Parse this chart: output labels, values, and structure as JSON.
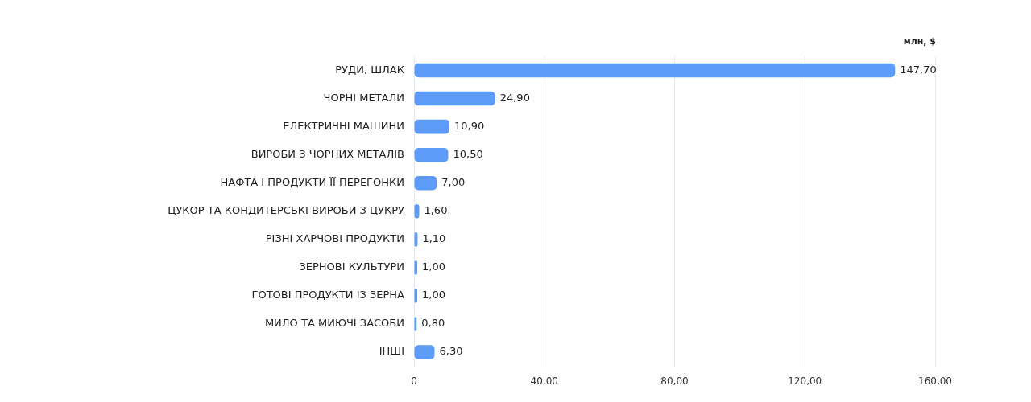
{
  "chart_data": {
    "type": "bar",
    "orientation": "horizontal",
    "annotations": [
      "млн, $"
    ],
    "categories": [
      "РУДИ, ШЛАК",
      "ЧОРНІ МЕТАЛИ",
      "ЕЛЕКТРИЧНІ МАШИНИ",
      "ВИРОБИ З ЧОРНИХ МЕТАЛІВ",
      "НАФТА І ПРОДУКТИ ЇЇ ПЕРЕГОНКИ",
      "ЦУКОР ТА КОНДИТЕРСЬКІ ВИРОБИ З ЦУКРУ",
      "РІЗНІ ХАРЧОВІ ПРОДУКТИ",
      "ЗЕРНОВІ КУЛЬТУРИ",
      "ГОТОВІ ПРОДУКТИ ІЗ ЗЕРНА",
      "МИЛО ТА МИЮЧІ ЗАСОБИ",
      "ІНШІ"
    ],
    "values": [
      147.7,
      24.9,
      10.9,
      10.5,
      7.0,
      1.6,
      1.1,
      1.0,
      1.0,
      0.8,
      6.3
    ],
    "value_labels": [
      "147,70",
      "24,90",
      "10,90",
      "10,50",
      "7,00",
      "1,60",
      "1,10",
      "1,00",
      "1,00",
      "0,80",
      "6,30"
    ],
    "color": "#5c9bf7",
    "xlim": [
      0,
      160
    ],
    "xticks": [
      0,
      {
        "value": 40,
        "label": "40,00"
      },
      {
        "value": 80,
        "label": "80,00"
      },
      {
        "value": 120,
        "label": "120,00"
      },
      {
        "value": 160,
        "label": "160,00"
      }
    ],
    "grid": "x",
    "legend": false
  }
}
